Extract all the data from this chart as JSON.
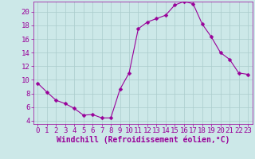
{
  "x": [
    0,
    1,
    2,
    3,
    4,
    5,
    6,
    7,
    8,
    9,
    10,
    11,
    12,
    13,
    14,
    15,
    16,
    17,
    18,
    19,
    20,
    21,
    22,
    23
  ],
  "y": [
    9.5,
    8.2,
    7.0,
    6.5,
    5.8,
    4.8,
    4.9,
    4.4,
    4.4,
    8.6,
    11.0,
    17.5,
    18.5,
    19.0,
    19.5,
    21.0,
    21.5,
    21.2,
    18.2,
    16.3,
    14.0,
    13.0,
    11.0,
    10.8
  ],
  "line_color": "#990099",
  "marker": "D",
  "marker_size": 2.5,
  "bg_color": "#cce8e8",
  "grid_color": "#aacccc",
  "xlabel": "Windchill (Refroidissement éolien,°C)",
  "xlim": [
    -0.5,
    23.5
  ],
  "ylim": [
    3.5,
    21.5
  ],
  "yticks": [
    4,
    6,
    8,
    10,
    12,
    14,
    16,
    18,
    20
  ],
  "xticks": [
    0,
    1,
    2,
    3,
    4,
    5,
    6,
    7,
    8,
    9,
    10,
    11,
    12,
    13,
    14,
    15,
    16,
    17,
    18,
    19,
    20,
    21,
    22,
    23
  ],
  "font_color": "#990099",
  "tick_font_size": 6.5,
  "xlabel_font_size": 7.0
}
